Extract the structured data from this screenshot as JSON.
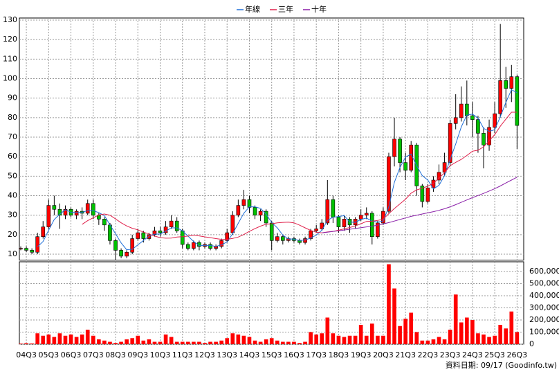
{
  "chart_data": {
    "type": "candlestick",
    "categories": [
      null,
      "04Q3",
      null,
      null,
      null,
      "05Q3",
      null,
      null,
      null,
      "06Q3",
      null,
      null,
      null,
      "07Q3",
      null,
      null,
      null,
      "08Q3",
      null,
      null,
      null,
      "09Q3",
      null,
      null,
      null,
      "10Q3",
      null,
      null,
      null,
      "11Q3",
      null,
      null,
      null,
      "12Q3",
      null,
      null,
      null,
      "13Q3",
      null,
      null,
      null,
      "14Q3",
      null,
      null,
      null,
      "15Q3",
      null,
      null,
      null,
      "16Q3",
      null,
      null,
      null,
      "17Q3",
      null,
      null,
      null,
      "18Q3",
      null,
      null,
      null,
      "19Q3",
      null,
      null,
      null,
      "20Q3",
      null,
      null,
      null,
      "21Q3",
      null,
      null,
      null,
      "22Q3",
      null,
      null,
      null,
      "23Q3",
      null,
      null,
      null,
      "24Q3",
      null,
      null,
      null,
      "25Q3",
      null,
      null,
      null,
      "26Q3"
    ],
    "candles": [
      [
        13,
        14,
        12,
        13
      ],
      [
        13,
        14,
        11,
        12
      ],
      [
        12,
        13,
        10,
        11
      ],
      [
        11,
        21,
        10,
        19
      ],
      [
        19,
        27,
        18,
        24
      ],
      [
        24,
        38,
        23,
        35
      ],
      [
        35,
        40,
        30,
        33
      ],
      [
        33,
        36,
        23,
        30
      ],
      [
        30,
        35,
        28,
        33
      ],
      [
        33,
        34,
        29,
        30
      ],
      [
        30,
        33,
        28,
        32
      ],
      [
        32,
        34,
        28,
        31
      ],
      [
        31,
        38,
        30,
        36
      ],
      [
        36,
        38,
        28,
        30
      ],
      [
        30,
        31,
        25,
        28
      ],
      [
        28,
        29,
        22,
        25
      ],
      [
        25,
        26,
        15,
        17
      ],
      [
        17,
        18,
        7,
        12
      ],
      [
        12,
        13,
        8,
        9
      ],
      [
        9,
        12,
        8,
        11
      ],
      [
        11,
        20,
        10,
        18
      ],
      [
        18,
        23,
        17,
        21
      ],
      [
        21,
        22,
        16,
        18
      ],
      [
        18,
        21,
        17,
        20
      ],
      [
        20,
        24,
        19,
        22
      ],
      [
        22,
        24,
        19,
        21
      ],
      [
        21,
        27,
        20,
        24
      ],
      [
        24,
        30,
        23,
        27
      ],
      [
        27,
        29,
        21,
        22
      ],
      [
        22,
        23,
        13,
        15
      ],
      [
        15,
        16,
        12,
        13
      ],
      [
        13,
        17,
        12,
        16
      ],
      [
        16,
        17,
        12,
        14
      ],
      [
        14,
        16,
        13,
        15
      ],
      [
        15,
        16,
        12,
        13
      ],
      [
        13,
        15,
        12,
        14
      ],
      [
        14,
        18,
        13,
        17
      ],
      [
        17,
        23,
        16,
        21
      ],
      [
        21,
        32,
        20,
        30
      ],
      [
        30,
        38,
        29,
        35
      ],
      [
        35,
        43,
        33,
        38
      ],
      [
        38,
        40,
        31,
        34
      ],
      [
        34,
        35,
        28,
        30
      ],
      [
        30,
        33,
        27,
        32
      ],
      [
        32,
        33,
        24,
        26
      ],
      [
        26,
        27,
        12,
        17
      ],
      [
        17,
        21,
        16,
        19
      ],
      [
        19,
        20,
        15,
        17
      ],
      [
        17,
        19,
        16,
        18
      ],
      [
        18,
        19,
        16,
        17
      ],
      [
        17,
        18,
        15,
        16
      ],
      [
        16,
        19,
        15,
        18
      ],
      [
        18,
        23,
        17,
        22
      ],
      [
        22,
        25,
        21,
        23
      ],
      [
        23,
        28,
        22,
        26
      ],
      [
        26,
        48,
        25,
        38
      ],
      [
        38,
        40,
        26,
        29
      ],
      [
        29,
        30,
        21,
        24
      ],
      [
        24,
        30,
        22,
        28
      ],
      [
        28,
        29,
        21,
        25
      ],
      [
        25,
        29,
        23,
        28
      ],
      [
        28,
        33,
        27,
        30
      ],
      [
        30,
        34,
        28,
        31
      ],
      [
        31,
        32,
        15,
        19
      ],
      [
        19,
        27,
        18,
        26
      ],
      [
        26,
        34,
        25,
        32
      ],
      [
        32,
        62,
        31,
        60
      ],
      [
        60,
        80,
        55,
        69
      ],
      [
        69,
        70,
        52,
        57
      ],
      [
        57,
        62,
        48,
        53
      ],
      [
        53,
        68,
        52,
        66
      ],
      [
        66,
        67,
        40,
        45
      ],
      [
        45,
        46,
        34,
        37
      ],
      [
        37,
        46,
        36,
        44
      ],
      [
        44,
        50,
        42,
        48
      ],
      [
        48,
        56,
        46,
        52
      ],
      [
        52,
        62,
        50,
        57
      ],
      [
        57,
        79,
        55,
        77
      ],
      [
        77,
        92,
        74,
        80
      ],
      [
        80,
        96,
        78,
        87
      ],
      [
        87,
        99,
        76,
        81
      ],
      [
        81,
        88,
        70,
        79
      ],
      [
        79,
        81,
        62,
        72
      ],
      [
        72,
        75,
        54,
        66
      ],
      [
        66,
        79,
        63,
        75
      ],
      [
        75,
        88,
        72,
        82
      ],
      [
        82,
        128,
        80,
        99
      ],
      [
        99,
        106,
        85,
        95
      ],
      [
        95,
        107,
        88,
        101
      ],
      [
        101,
        102,
        64,
        76
      ]
    ],
    "up_color": "#ff0000",
    "down_color": "#00c000",
    "volume": [
      5000,
      8000,
      6000,
      90000,
      70000,
      80000,
      60000,
      90000,
      70000,
      80000,
      60000,
      80000,
      120000,
      70000,
      40000,
      30000,
      20000,
      10000,
      20000,
      40000,
      50000,
      70000,
      30000,
      40000,
      20000,
      20000,
      80000,
      60000,
      20000,
      20000,
      20000,
      20000,
      20000,
      10000,
      20000,
      20000,
      30000,
      50000,
      90000,
      80000,
      70000,
      60000,
      30000,
      20000,
      40000,
      50000,
      30000,
      20000,
      20000,
      20000,
      10000,
      20000,
      100000,
      80000,
      90000,
      220000,
      90000,
      70000,
      60000,
      70000,
      70000,
      160000,
      70000,
      170000,
      70000,
      70000,
      660000,
      460000,
      150000,
      210000,
      260000,
      100000,
      30000,
      30000,
      40000,
      60000,
      40000,
      120000,
      410000,
      180000,
      220000,
      200000,
      90000,
      80000,
      60000,
      70000,
      160000,
      130000,
      270000,
      100000
    ],
    "volume_color": "#ff0000",
    "series": [
      {
        "name": "年線",
        "color": "#1f6fd8",
        "values": [
          null,
          null,
          null,
          13.8,
          16.5,
          22.3,
          27.8,
          30.5,
          32.8,
          31.5,
          31.3,
          31.5,
          32.3,
          32.3,
          31.3,
          29.8,
          25,
          20.5,
          15.8,
          12.3,
          12.5,
          14.8,
          17,
          19.3,
          20.3,
          20.3,
          21.8,
          23.5,
          23.5,
          22,
          19.3,
          16.5,
          14.5,
          14.5,
          14.5,
          14,
          14.8,
          16.3,
          20.5,
          25.8,
          31,
          34.3,
          34.3,
          33.5,
          30.5,
          26.3,
          23.5,
          19.8,
          17.8,
          17.8,
          17,
          17.3,
          18.3,
          19.8,
          22.3,
          27.3,
          29,
          29.3,
          29.8,
          26.5,
          26.3,
          27.8,
          28.5,
          27,
          26.5,
          27,
          34.3,
          46.8,
          54.5,
          59.8,
          61.3,
          55.3,
          50.3,
          48,
          43.5,
          45.3,
          50.3,
          58.5,
          66.5,
          75.3,
          81.3,
          81.8,
          79.8,
          74.5,
          73,
          73.8,
          80.5,
          87.8,
          94.3,
          92.8
        ]
      },
      {
        "name": "三年",
        "color": "#e0204a",
        "values": [
          null,
          null,
          null,
          null,
          null,
          null,
          null,
          null,
          null,
          null,
          null,
          25.3,
          27.2,
          28.7,
          30.1,
          30.6,
          30,
          28.1,
          26.1,
          24.5,
          23.3,
          22.5,
          21.3,
          20.4,
          19.3,
          18.5,
          18.2,
          18.3,
          18.8,
          19,
          19.3,
          19.8,
          19.4,
          18.9,
          18.5,
          18,
          17.6,
          17.6,
          18.1,
          18.8,
          20.1,
          21.7,
          23.1,
          24.4,
          25.4,
          25.6,
          26.1,
          26.3,
          26.4,
          26.1,
          24.9,
          23.5,
          22.2,
          21.3,
          20.9,
          21.4,
          21.7,
          22.3,
          23,
          23.7,
          24.5,
          25.6,
          26.8,
          26.9,
          27.3,
          28,
          30.8,
          33.4,
          35.8,
          38.2,
          41.3,
          43,
          43.8,
          44.9,
          46.3,
          49.1,
          51.7,
          55.4,
          57.1,
          58.6,
          60.6,
          62.8,
          63.3,
          65,
          68.2,
          71.3,
          75.6,
          79.2,
          82.8,
          82.8
        ]
      },
      {
        "name": "十年",
        "color": "#8a1fa8",
        "values": [
          null,
          null,
          null,
          null,
          null,
          null,
          null,
          null,
          null,
          null,
          null,
          null,
          null,
          null,
          null,
          null,
          null,
          null,
          null,
          null,
          null,
          null,
          null,
          null,
          null,
          null,
          null,
          null,
          null,
          null,
          null,
          null,
          null,
          null,
          null,
          null,
          null,
          null,
          null,
          null,
          null,
          null,
          null,
          null,
          null,
          null,
          null,
          null,
          null,
          null,
          null,
          null,
          null,
          null,
          21,
          21.3,
          21.7,
          22,
          22.4,
          22.8,
          23.2,
          23.6,
          24,
          24.4,
          24.9,
          25.5,
          26.2,
          27,
          27.8,
          28.6,
          29.4,
          30,
          30.6,
          31.2,
          31.8,
          32.5,
          33.3,
          34.3,
          35.4,
          36.6,
          37.8,
          39,
          40.1,
          41.2,
          42.4,
          43.6,
          45,
          46.5,
          48,
          49.5
        ]
      }
    ],
    "ylim": [
      7,
      130
    ],
    "yticks": [
      10,
      20,
      30,
      40,
      50,
      60,
      70,
      80,
      90,
      100,
      110,
      120,
      130
    ],
    "volume_lim": [
      0,
      680000
    ],
    "volume_ticks": [
      0,
      {
        "value": 100000,
        "label": "100,000"
      },
      {
        "value": 200000,
        "label": "200,000"
      },
      {
        "value": 300000,
        "label": "300,000"
      },
      {
        "value": 400000,
        "label": "400,000"
      },
      {
        "value": 500000,
        "label": "500,000"
      },
      {
        "value": 600000,
        "label": "600,000"
      }
    ],
    "grid": true,
    "legend": "top",
    "note": "資料日期: 09/17 (Goodinfo.tw)"
  }
}
